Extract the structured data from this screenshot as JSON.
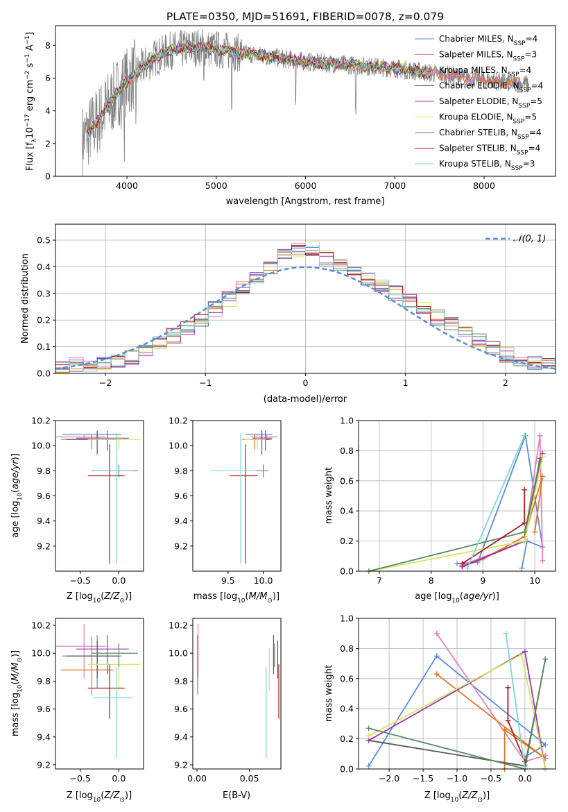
{
  "figure": {
    "title": "PLATE=0350, MJD=51691, FIBERID=0078, z=0.079",
    "colors": {
      "chabrier_miles": "#5b8bd8",
      "salpeter_miles": "#e57fb8",
      "kroupa_miles": "#dd7722",
      "chabrier_elodie": "#555555",
      "salpeter_elodie": "#9a33b8",
      "kroupa_elodie": "#d6e45a",
      "chabrier_stelib": "#5a8a60",
      "salpeter_stelib": "#b01818",
      "kroupa_stelib": "#7fd5d5",
      "spectrum": "#808080",
      "normal_curve": "#5b8bd8"
    }
  },
  "chart_data": [
    {
      "id": "spectrum",
      "type": "line",
      "xlabel": "wavelength [Angstrom, rest frame]",
      "ylabel": "Flux [f_λ 10^-17 erg cm^-2 s^-1 A^-1]",
      "xlim": [
        3200,
        8800
      ],
      "ylim": [
        0,
        9.2
      ],
      "xticks": [
        4000,
        5000,
        6000,
        7000,
        8000
      ],
      "yticks": [
        0,
        2,
        4,
        6,
        8
      ],
      "legend_position": "right",
      "legend": [
        {
          "model": "Chabrier MILES",
          "nssp": "4"
        },
        {
          "model": "Salpeter MILES",
          "nssp": "3"
        },
        {
          "model": "Kroupa MILES",
          "nssp": "4"
        },
        {
          "model": "Chabrier ELODIE",
          "nssp": "4"
        },
        {
          "model": "Salpeter ELODIE",
          "nssp": "5"
        },
        {
          "model": "Kroupa ELODIE",
          "nssp": "5"
        },
        {
          "model": "Chabrier STELIB",
          "nssp": "4"
        },
        {
          "model": "Salpeter STELIB",
          "nssp": "4"
        },
        {
          "model": "Kroupa STELIB",
          "nssp": "3"
        }
      ],
      "continuum": [
        [
          3500,
          2.2
        ],
        [
          3700,
          3.6
        ],
        [
          3900,
          5.2
        ],
        [
          4100,
          6.3
        ],
        [
          4300,
          7.2
        ],
        [
          4500,
          7.7
        ],
        [
          4800,
          7.9
        ],
        [
          5200,
          7.6
        ],
        [
          5600,
          7.3
        ],
        [
          6000,
          7.0
        ],
        [
          6500,
          6.8
        ],
        [
          7000,
          6.6
        ],
        [
          7400,
          6.3
        ],
        [
          7700,
          6.1
        ],
        [
          8000,
          5.9
        ],
        [
          8300,
          5.7
        ],
        [
          8500,
          5.6
        ]
      ]
    },
    {
      "id": "residuals",
      "type": "line",
      "xlabel": "(data-model)/error",
      "ylabel": "Normed distribution",
      "xlim": [
        -2.5,
        2.5
      ],
      "ylim": [
        0,
        0.56
      ],
      "xticks": [
        -2,
        -1,
        0,
        1,
        2
      ],
      "yticks": [
        0.0,
        0.1,
        0.2,
        0.3,
        0.4,
        0.5
      ],
      "legend": "𝒩(0, 1)",
      "histogram": [
        0.02,
        0.03,
        0.03,
        0.04,
        0.05,
        0.06,
        0.08,
        0.11,
        0.14,
        0.17,
        0.2,
        0.24,
        0.28,
        0.32,
        0.36,
        0.4,
        0.44,
        0.46,
        0.47,
        0.43,
        0.4,
        0.37,
        0.35,
        0.33,
        0.3,
        0.27,
        0.24,
        0.21,
        0.18,
        0.15,
        0.12,
        0.1,
        0.07,
        0.05,
        0.04,
        0.03
      ]
    },
    {
      "id": "age_vs_Z",
      "type": "scatter",
      "xlabel": "Z [log10(Z/Z⊙)]",
      "ylabel": "age  [log10(age/yr)]",
      "xlim": [
        -0.82,
        0.32
      ],
      "ylim": [
        9.0,
        10.2
      ],
      "xticks": [
        -0.5,
        0.0
      ],
      "yticks": [
        9.2,
        9.4,
        9.6,
        9.8,
        10.0,
        10.2
      ]
    },
    {
      "id": "age_vs_mass",
      "type": "scatter",
      "xlabel": "mass [log10(M/M⊙)]",
      "xlim": [
        9.0,
        10.25
      ],
      "ylim": [
        9.0,
        10.2
      ],
      "xticks": [
        9.5,
        10.0
      ],
      "yticks": [
        9.2,
        9.4,
        9.6,
        9.8,
        10.0,
        10.2
      ]
    },
    {
      "id": "weight_vs_age",
      "type": "line",
      "xlabel": "age  [log10(age/yr)]",
      "ylabel": "mass weight",
      "xlim": [
        6.6,
        10.4
      ],
      "ylim": [
        0,
        1.0
      ],
      "xticks": [
        7,
        8,
        9,
        10
      ],
      "yticks": [
        0.0,
        0.2,
        0.4,
        0.6,
        0.8,
        1.0
      ]
    },
    {
      "id": "mass_vs_Z",
      "type": "scatter",
      "xlabel": "Z [log10(Z/Z⊙)]",
      "ylabel": "mass [log10(M/M⊙)]",
      "xlim": [
        -0.82,
        0.32
      ],
      "ylim": [
        9.17,
        10.25
      ],
      "xticks": [
        -0.5,
        0.0
      ],
      "yticks": [
        9.2,
        9.4,
        9.6,
        9.8,
        10.0,
        10.2
      ]
    },
    {
      "id": "mass_vs_ebv",
      "type": "scatter",
      "xlabel": "E(B-V)",
      "xlim": [
        -0.004,
        0.08
      ],
      "ylim": [
        9.17,
        10.25
      ],
      "xticks": [
        0.0,
        0.05
      ],
      "yticks": [
        9.2,
        9.4,
        9.6,
        9.8,
        10.0,
        10.2
      ]
    },
    {
      "id": "weight_vs_Z",
      "type": "line",
      "xlabel": "Z [log10(Z/Z⊙)]",
      "ylabel": "mass weight",
      "xlim": [
        -2.45,
        0.45
      ],
      "ylim": [
        0,
        1.0
      ],
      "xticks": [
        -2.0,
        -1.5,
        -1.0,
        -0.5,
        0.0
      ],
      "yticks": [
        0.0,
        0.2,
        0.4,
        0.6,
        0.8,
        1.0
      ]
    }
  ],
  "models": [
    {
      "key": "chabrier_miles",
      "Z": -0.28,
      "Zerr": 0.45,
      "age": 10.09,
      "aerr_lo": 0.02,
      "aerr_hi": 0.03,
      "mass": 9.98,
      "mlo": 9.75,
      "mhi": 10.13,
      "ebv": 0.0005,
      "wa": [
        [
          9.75,
          0.02
        ],
        [
          9.85,
          0.2
        ],
        [
          10.15,
          0.16
        ],
        [
          9.82,
          0.9
        ],
        [
          8.9,
          0.06
        ],
        [
          8.5,
          0.05
        ]
      ],
      "wz": [
        [
          -2.3,
          0.02
        ],
        [
          -1.3,
          0.75
        ],
        [
          0.3,
          0.16
        ],
        [
          0.0,
          0.08
        ]
      ]
    },
    {
      "key": "salpeter_miles",
      "Z": -0.45,
      "Zerr": 0.4,
      "age": 10.07,
      "aerr_lo": 0.01,
      "aerr_hi": 0.02,
      "mass": 10.05,
      "mlo": 9.82,
      "mhi": 10.21,
      "ebv": 0.001,
      "wa": [
        [
          8.6,
          0.04
        ],
        [
          9.8,
          0.2
        ],
        [
          10.1,
          0.9
        ],
        [
          10.15,
          0.07
        ]
      ],
      "wz": [
        [
          -1.3,
          0.9
        ],
        [
          0.0,
          0.05
        ],
        [
          0.3,
          0.09
        ]
      ]
    },
    {
      "key": "kroupa_miles",
      "Z": -0.35,
      "Zerr": 0.4,
      "age": 10.05,
      "aerr_lo": 0.08,
      "aerr_hi": 0.04,
      "mass": 9.88,
      "mlo": 9.7,
      "mhi": 10.12,
      "ebv": 0.0005,
      "wa": [
        [
          8.6,
          0.03
        ],
        [
          9.0,
          0.08
        ],
        [
          9.8,
          0.23
        ],
        [
          10.15,
          0.63
        ],
        [
          10.0,
          0.26
        ]
      ],
      "wz": [
        [
          -1.3,
          0.63
        ],
        [
          0.3,
          0.07
        ],
        [
          -0.3,
          0.26
        ],
        [
          -0.3,
          0.0
        ]
      ]
    },
    {
      "key": "chabrier_elodie",
      "Z": -0.28,
      "Zerr": 0.4,
      "age": 10.05,
      "aerr_lo": 0.12,
      "aerr_hi": 0.07,
      "mass": 9.98,
      "mlo": 9.82,
      "mhi": 10.09,
      "ebv": 0.077,
      "wa": [
        [
          8.6,
          0.03
        ],
        [
          9.8,
          0.2
        ],
        [
          10.1,
          0.75
        ]
      ],
      "wz": [
        [
          -2.3,
          0.19
        ],
        [
          0.0,
          0.02
        ],
        [
          0.3,
          0.73
        ]
      ]
    },
    {
      "key": "salpeter_elodie",
      "Z": -0.15,
      "Zerr": 0.4,
      "age": 10.06,
      "aerr_lo": 0.1,
      "aerr_hi": 0.06,
      "mass": 10.03,
      "mlo": 9.85,
      "mhi": 10.13,
      "ebv": 0.073,
      "wa": [
        [
          8.6,
          0.03
        ],
        [
          9.8,
          0.2
        ],
        [
          10.15,
          0.78
        ]
      ],
      "wz": [
        [
          -2.3,
          0.19
        ],
        [
          0.0,
          0.78
        ],
        [
          0.3,
          0.0
        ]
      ]
    },
    {
      "key": "kroupa_elodie",
      "Z": 0.0,
      "Zerr": 0.4,
      "age": 10.05,
      "aerr_lo": 0.08,
      "aerr_hi": 0.05,
      "mass": 9.92,
      "mlo": 9.73,
      "mhi": 10.04,
      "ebv": 0.069,
      "wa": [
        [
          6.8,
          0.0
        ],
        [
          9.8,
          0.2
        ],
        [
          10.15,
          0.76
        ]
      ],
      "wz": [
        [
          -2.3,
          0.22
        ],
        [
          -0.05,
          0.76
        ],
        [
          0.3,
          0.0
        ]
      ]
    },
    {
      "key": "chabrier_stelib",
      "Z": 0.0,
      "Zerr": 0.35,
      "age": 9.8,
      "aerr_lo": 0.05,
      "aerr_hi": 0.05,
      "mass": 10.0,
      "mlo": 9.9,
      "mhi": 10.07,
      "ebv": 0.074,
      "wa": [
        [
          6.8,
          0.0
        ],
        [
          9.8,
          0.26
        ],
        [
          10.1,
          0.73
        ]
      ],
      "wz": [
        [
          -2.3,
          0.27
        ],
        [
          0.0,
          0.0
        ],
        [
          0.3,
          0.73
        ]
      ]
    },
    {
      "key": "salpeter_stelib",
      "Z": -0.12,
      "Zerr": 0.28,
      "age": 9.76,
      "aerr_lo": 0.7,
      "aerr_hi": 0.25,
      "mass": 9.75,
      "mlo": 9.53,
      "mhi": 9.92,
      "ebv": 0.078,
      "wa": [
        [
          8.6,
          0.05
        ],
        [
          9.8,
          0.32
        ],
        [
          9.8,
          0.54
        ]
      ],
      "wz": [
        [
          -0.25,
          0.54
        ],
        [
          -0.25,
          0.32
        ],
        [
          0.0,
          0.05
        ]
      ]
    },
    {
      "key": "kroupa_stelib",
      "Z": -0.03,
      "Zerr": 0.3,
      "age": 9.8,
      "aerr_lo": 0.74,
      "aerr_hi": 0.3,
      "mass": 9.68,
      "mlo": 9.25,
      "mhi": 9.9,
      "ebv": 0.066,
      "wa": [
        [
          8.7,
          0.02
        ],
        [
          9.8,
          0.9
        ]
      ],
      "wz": [
        [
          -0.28,
          0.9
        ],
        [
          0.0,
          0.0
        ]
      ]
    }
  ]
}
